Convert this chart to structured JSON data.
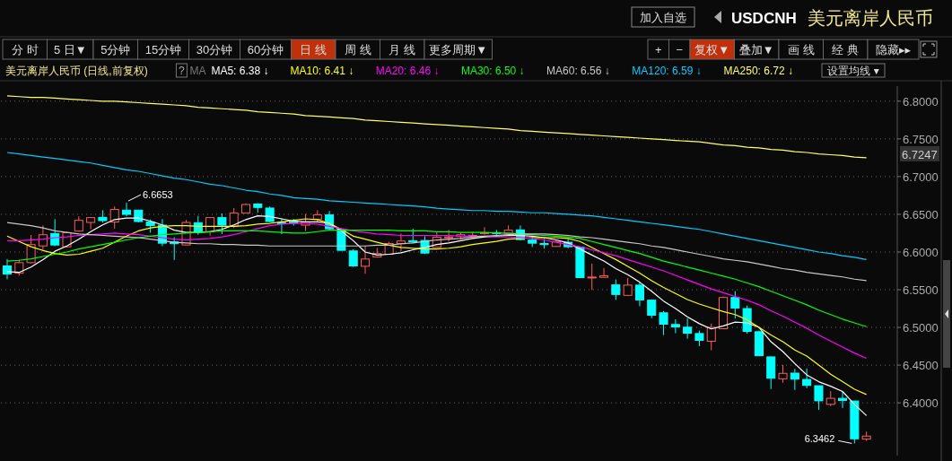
{
  "chart_data": {
    "type": "candlestick",
    "title": "USDCNH",
    "subtitle": "美元离岸人民币",
    "legend_title": "美元离岸人民币 (日线,前复权)",
    "categories": [
      null,
      null,
      null,
      null,
      null,
      null,
      null,
      null,
      null,
      null,
      null,
      null,
      null,
      null,
      null,
      null,
      null,
      null,
      null,
      null,
      null,
      null,
      null,
      null,
      null,
      null,
      null,
      null,
      null,
      null,
      null,
      null,
      null,
      null,
      null,
      null,
      null,
      null,
      null,
      null,
      null,
      null,
      null,
      null,
      null,
      null,
      null,
      null,
      null,
      null,
      null,
      null,
      null,
      null,
      null,
      null,
      null,
      null,
      null,
      null,
      null,
      null,
      null,
      null,
      null,
      null,
      null,
      null,
      null,
      null,
      null,
      null,
      null
    ],
    "ohlc": [
      [
        6.5815,
        6.5907,
        6.5639,
        6.5707
      ],
      [
        6.5719,
        6.5899,
        6.5687,
        6.5859
      ],
      [
        6.5859,
        6.6225,
        6.585,
        6.6098
      ],
      [
        6.6081,
        6.6352,
        6.6014,
        6.6229
      ],
      [
        6.6245,
        6.6436,
        6.6078,
        6.6093
      ],
      [
        6.6069,
        6.6265,
        6.606,
        6.6257
      ],
      [
        6.6277,
        6.6472,
        6.627,
        6.642
      ],
      [
        6.6392,
        6.646,
        6.6301,
        6.6456
      ],
      [
        6.646,
        6.6555,
        6.639,
        6.6416
      ],
      [
        6.6397,
        6.6603,
        6.6308,
        6.6564
      ],
      [
        6.6555,
        6.6653,
        6.6472,
        6.6499
      ],
      [
        6.6555,
        6.656,
        6.6392,
        6.6404
      ],
      [
        6.64,
        6.6432,
        6.6257,
        6.6349
      ],
      [
        6.6356,
        6.6436,
        6.6078,
        6.6117
      ],
      [
        6.6134,
        6.6197,
        6.5895,
        6.611
      ],
      [
        6.6093,
        6.6424,
        6.6093,
        6.6392
      ],
      [
        6.6388,
        6.648,
        6.6229,
        6.6269
      ],
      [
        6.6272,
        6.646,
        6.6217,
        6.6456
      ],
      [
        6.6456,
        6.6511,
        6.6237,
        6.6356
      ],
      [
        6.6344,
        6.6583,
        6.6317,
        6.6516
      ],
      [
        6.6516,
        6.6645,
        6.6516,
        6.663
      ],
      [
        6.6636,
        6.6648,
        6.6523,
        6.6591
      ],
      [
        6.6583,
        6.6603,
        6.6397,
        6.6404
      ],
      [
        6.6392,
        6.6444,
        6.6237,
        6.6376
      ],
      [
        6.6404,
        6.644,
        6.635,
        6.6384
      ],
      [
        6.6356,
        6.6504,
        6.6277,
        6.6397
      ],
      [
        6.6436,
        6.6555,
        6.6397,
        6.6492
      ],
      [
        6.6492,
        6.6543,
        6.6296,
        6.6308
      ],
      [
        6.6301,
        6.631,
        6.6018,
        6.6022
      ],
      [
        6.6014,
        6.6038,
        6.5803,
        6.5815
      ],
      [
        6.5811,
        6.6086,
        6.5711,
        6.5907
      ],
      [
        6.5933,
        6.6054,
        6.593,
        6.5979
      ],
      [
        6.597,
        6.6134,
        6.5968,
        6.6113
      ],
      [
        6.611,
        6.6245,
        6.601,
        6.6146
      ],
      [
        6.615,
        6.6308,
        6.6117,
        6.6134
      ],
      [
        6.6153,
        6.6209,
        6.5974,
        6.5986
      ],
      [
        6.6062,
        6.6272,
        6.606,
        6.6197
      ],
      [
        6.6189,
        6.6293,
        6.6137,
        6.6201
      ],
      [
        6.6205,
        6.6257,
        6.6165,
        6.6229
      ],
      [
        6.6212,
        6.6269,
        6.6205,
        6.6221
      ],
      [
        6.6245,
        6.6328,
        6.6229,
        6.6257
      ],
      [
        6.6257,
        6.6293,
        6.6225,
        6.6245
      ],
      [
        6.6245,
        6.6352,
        6.6241,
        6.6289
      ],
      [
        6.6293,
        6.6352,
        6.6153,
        6.6165
      ],
      [
        6.6158,
        6.6205,
        6.6066,
        6.6117
      ],
      [
        6.6113,
        6.6173,
        6.6046,
        6.6098
      ],
      [
        6.6074,
        6.6153,
        6.607,
        6.6134
      ],
      [
        6.613,
        6.6173,
        6.605,
        6.607
      ],
      [
        6.6066,
        6.607,
        6.5655,
        6.566
      ],
      [
        6.566,
        6.5847,
        6.5496,
        6.5668
      ],
      [
        6.5664,
        6.5787,
        6.566,
        6.5684
      ],
      [
        6.5564,
        6.5636,
        6.5365,
        6.5437
      ],
      [
        6.5425,
        6.5656,
        6.5425,
        6.5561
      ],
      [
        6.5561,
        6.56,
        6.5281,
        6.5365
      ],
      [
        6.5361,
        6.5373,
        6.5122,
        6.5162
      ],
      [
        6.5194,
        6.5218,
        6.4899,
        6.5043
      ],
      [
        6.5039,
        6.5107,
        6.4923,
        6.5007
      ],
      [
        6.5003,
        6.5122,
        6.4851,
        6.4923
      ],
      [
        6.4919,
        6.4959,
        6.4752,
        6.4828
      ],
      [
        6.4816,
        6.5051,
        6.4696,
        6.5
      ],
      [
        6.4983,
        6.5409,
        6.4983,
        6.5397
      ],
      [
        6.5397,
        6.5481,
        6.5119,
        6.5257
      ],
      [
        6.525,
        6.529,
        6.4916,
        6.4947
      ],
      [
        6.4943,
        6.4959,
        6.4622,
        6.4625
      ],
      [
        6.4609,
        6.4613,
        6.4183,
        6.4326
      ],
      [
        6.4319,
        6.4502,
        6.4266,
        6.4391
      ],
      [
        6.4394,
        6.445,
        6.4171,
        6.4314
      ],
      [
        6.431,
        6.4454,
        6.4195,
        6.4231
      ],
      [
        6.4227,
        6.4227,
        6.3908,
        6.4027
      ],
      [
        6.398,
        6.4155,
        6.3956,
        6.406
      ],
      [
        6.406,
        6.4155,
        6.3932,
        6.4032
      ],
      [
        6.4024,
        6.4024,
        6.3462,
        6.3523
      ],
      [
        6.3519,
        6.3618,
        6.3495,
        6.3559
      ]
    ],
    "series": [
      {
        "type": "line",
        "name": "MA5: 6.38 ↓",
        "color": "#ffffff",
        "values": [
          6.574,
          6.573,
          6.58,
          6.59,
          6.601,
          6.608,
          6.617,
          6.627,
          6.636,
          6.643,
          6.645,
          6.645,
          6.641,
          6.636,
          6.629,
          6.626,
          6.626,
          6.627,
          6.63,
          6.636,
          6.643,
          6.648,
          6.647,
          6.644,
          6.641,
          6.64,
          6.64,
          6.638,
          6.628,
          6.615,
          6.6,
          6.596,
          6.597,
          6.599,
          6.603,
          6.606,
          6.61,
          6.612,
          6.615,
          6.618,
          6.62,
          6.621,
          6.622,
          6.622,
          6.621,
          6.619,
          6.616,
          6.612,
          6.604,
          6.596,
          6.588,
          6.578,
          6.57,
          6.56,
          6.548,
          6.535,
          6.525,
          6.514,
          6.505,
          6.498,
          6.502,
          6.507,
          6.506,
          6.5,
          6.481,
          6.468,
          6.452,
          6.437,
          6.428,
          6.422,
          6.415,
          6.398,
          6.383
        ]
      },
      {
        "type": "line",
        "name": "MA10: 6.41 ↓",
        "color": "#ffff00",
        "values": [
          6.621,
          6.614,
          6.607,
          6.602,
          6.598,
          6.596,
          6.597,
          6.601,
          6.605,
          6.613,
          6.621,
          6.628,
          6.632,
          6.634,
          6.635,
          6.635,
          6.634,
          6.634,
          6.634,
          6.634,
          6.635,
          6.637,
          6.638,
          6.64,
          6.642,
          6.644,
          6.643,
          6.638,
          6.63,
          6.621,
          6.617,
          6.613,
          6.609,
          6.606,
          6.605,
          6.604,
          6.604,
          6.605,
          6.607,
          6.61,
          6.612,
          6.614,
          6.617,
          6.618,
          6.619,
          6.619,
          6.619,
          6.618,
          6.614,
          6.606,
          6.598,
          6.59,
          6.581,
          6.572,
          6.562,
          6.553,
          6.545,
          6.537,
          6.531,
          6.526,
          6.521,
          6.517,
          6.51,
          6.5,
          6.49,
          6.481,
          6.47,
          6.462,
          6.45,
          6.438,
          6.428,
          6.418,
          6.411
        ]
      },
      {
        "type": "line",
        "name": "MA20: 6.46 ↓",
        "color": "#ff00ff",
        "values": [
          6.615,
          6.615,
          6.616,
          6.617,
          6.619,
          6.62,
          6.622,
          6.623,
          6.624,
          6.625,
          6.624,
          6.623,
          6.621,
          6.619,
          6.617,
          6.616,
          6.617,
          6.618,
          6.62,
          6.623,
          6.627,
          6.631,
          6.635,
          6.637,
          6.638,
          6.638,
          6.637,
          6.634,
          6.631,
          6.628,
          6.626,
          6.624,
          6.623,
          6.622,
          6.622,
          6.622,
          6.622,
          6.622,
          6.621,
          6.621,
          6.621,
          6.62,
          6.62,
          6.619,
          6.618,
          6.616,
          6.613,
          6.61,
          6.607,
          6.603,
          6.599,
          6.595,
          6.59,
          6.585,
          6.58,
          6.575,
          6.569,
          6.563,
          6.557,
          6.551,
          6.546,
          6.541,
          6.536,
          6.53,
          6.522,
          6.515,
          6.507,
          6.499,
          6.49,
          6.482,
          6.474,
          6.466,
          6.459
        ]
      },
      {
        "type": "line",
        "name": "MA30: 6.50 ↓",
        "color": "#00ff00",
        "values": [
          6.588,
          6.589,
          6.591,
          6.594,
          6.597,
          6.6,
          6.604,
          6.607,
          6.61,
          6.613,
          6.616,
          6.619,
          6.621,
          6.623,
          6.624,
          6.625,
          6.626,
          6.627,
          6.628,
          6.628,
          6.628,
          6.628,
          6.627,
          6.626,
          6.625,
          6.625,
          6.627,
          6.629,
          6.629,
          6.629,
          6.629,
          6.629,
          6.629,
          6.628,
          6.628,
          6.628,
          6.627,
          6.627,
          6.626,
          6.626,
          6.626,
          6.625,
          6.625,
          6.624,
          6.623,
          6.622,
          6.621,
          6.62,
          6.618,
          6.614,
          6.61,
          6.606,
          6.602,
          6.598,
          6.593,
          6.588,
          6.584,
          6.58,
          6.576,
          6.572,
          6.568,
          6.564,
          6.559,
          6.554,
          6.548,
          6.542,
          6.536,
          6.53,
          6.523,
          6.517,
          6.511,
          6.506,
          6.501
        ]
      },
      {
        "type": "line",
        "name": "MA60: 6.56 ↓",
        "color": "#c8c8c8",
        "values": [
          6.639,
          6.637,
          6.635,
          6.632,
          6.628,
          6.626,
          6.624,
          6.623,
          6.622,
          6.621,
          6.62,
          6.619,
          6.617,
          6.615,
          6.613,
          6.612,
          6.611,
          6.611,
          6.61,
          6.61,
          6.609,
          6.609,
          6.608,
          6.608,
          6.608,
          6.608,
          6.608,
          6.608,
          6.608,
          6.608,
          6.608,
          6.609,
          6.609,
          6.611,
          6.612,
          6.614,
          6.616,
          6.617,
          6.618,
          6.62,
          6.621,
          6.622,
          6.623,
          6.624,
          6.624,
          6.624,
          6.623,
          6.622,
          6.62,
          6.619,
          6.617,
          6.615,
          6.613,
          6.611,
          6.608,
          6.606,
          6.603,
          6.6,
          6.597,
          6.594,
          6.591,
          6.589,
          6.587,
          6.584,
          6.581,
          6.578,
          6.576,
          6.573,
          6.571,
          6.569,
          6.567,
          6.564,
          6.562
        ]
      },
      {
        "type": "line",
        "name": "MA120: 6.59 ↓",
        "color": "#00ccff",
        "values": [
          6.732,
          6.73,
          6.728,
          6.726,
          6.724,
          6.722,
          6.72,
          6.718,
          6.715,
          6.712,
          6.709,
          6.707,
          6.704,
          6.701,
          6.698,
          6.696,
          6.693,
          6.69,
          6.688,
          6.685,
          6.682,
          6.68,
          6.677,
          6.675,
          6.672,
          6.671,
          6.67,
          6.668,
          6.667,
          6.666,
          6.665,
          6.664,
          6.663,
          6.662,
          6.661,
          6.66,
          6.658,
          6.657,
          6.656,
          6.655,
          6.655,
          6.654,
          6.654,
          6.653,
          6.652,
          6.652,
          6.651,
          6.65,
          6.649,
          6.648,
          6.646,
          6.644,
          6.642,
          6.64,
          6.638,
          6.636,
          6.634,
          6.632,
          6.63,
          6.627,
          6.624,
          6.621,
          6.618,
          6.615,
          6.612,
          6.609,
          6.606,
          6.603,
          6.6,
          6.598,
          6.595,
          6.593,
          6.59
        ]
      },
      {
        "type": "line",
        "name": "MA250: 6.72 ↓",
        "color": "#ffff66",
        "values": [
          6.807,
          6.806,
          6.805,
          6.805,
          6.804,
          6.803,
          6.802,
          6.801,
          6.8,
          6.8,
          6.799,
          6.798,
          6.797,
          6.796,
          6.795,
          6.794,
          6.792,
          6.791,
          6.79,
          6.789,
          6.788,
          6.786,
          6.785,
          6.784,
          6.783,
          6.781,
          6.78,
          6.779,
          6.778,
          6.777,
          6.775,
          6.774,
          6.773,
          6.772,
          6.771,
          6.77,
          6.769,
          6.768,
          6.767,
          6.766,
          6.765,
          6.764,
          6.763,
          6.761,
          6.76,
          6.759,
          6.758,
          6.757,
          6.756,
          6.755,
          6.754,
          6.753,
          6.752,
          6.751,
          6.75,
          6.749,
          6.748,
          6.747,
          6.746,
          6.744,
          6.742,
          6.741,
          6.739,
          6.738,
          6.736,
          6.735,
          6.733,
          6.732,
          6.73,
          6.729,
          6.728,
          6.726,
          6.725
        ]
      }
    ],
    "ylim": [
      6.33,
      6.82
    ],
    "yticks": [
      {
        "value": 6.4,
        "label": "6.4000"
      },
      {
        "value": 6.45,
        "label": "6.4500"
      },
      {
        "value": 6.5,
        "label": "6.5000"
      },
      {
        "value": 6.55,
        "label": "6.5500"
      },
      {
        "value": 6.6,
        "label": "6.6000"
      },
      {
        "value": 6.65,
        "label": "6.6500"
      },
      {
        "value": 6.7,
        "label": "6.7000"
      },
      {
        "value": 6.75,
        "label": "6.7500"
      },
      {
        "value": 6.8,
        "label": "6.8000"
      }
    ],
    "grid": "y",
    "legend": "top",
    "tick_labels": "y",
    "annotations": [
      "加入自选",
      "分 时",
      "5 日▼",
      "5分钟",
      "15分钟",
      "30分钟",
      "60分钟",
      "日 线",
      "周 线",
      "月 线",
      "更多周期▼",
      "+",
      "−",
      "复权▼",
      "叠加▼",
      "画 线",
      "经 典",
      "隐藏▸▸",
      "?",
      "MA",
      "设置均线 ▾",
      "6.6653",
      "6.3462",
      "6.7247"
    ]
  }
}
